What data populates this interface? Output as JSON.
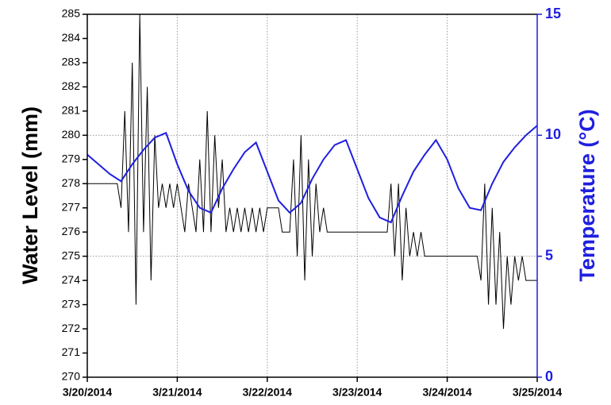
{
  "chart_data": {
    "type": "line",
    "y_label": "Water Level (mm)",
    "y2_label": "Temperature (°C)",
    "xlim": [
      0,
      120
    ],
    "xticks": [
      {
        "value": 0,
        "label": "3/20/2014"
      },
      {
        "value": 24,
        "label": "3/21/2014"
      },
      {
        "value": 48,
        "label": "3/22/2014"
      },
      {
        "value": 72,
        "label": "3/23/2014"
      },
      {
        "value": 96,
        "label": "3/24/2014"
      },
      {
        "value": 120,
        "label": "3/25/2014"
      }
    ],
    "ylim": [
      270,
      285
    ],
    "yticks": [
      270,
      271,
      272,
      273,
      274,
      275,
      276,
      277,
      278,
      279,
      280,
      281,
      282,
      283,
      284,
      285
    ],
    "y2lim": [
      0,
      15
    ],
    "y2ticks": [
      0,
      5,
      10,
      15
    ],
    "grid": true,
    "series": [
      {
        "name": "Water Level",
        "color": "#000000",
        "x": [
          0,
          1,
          2,
          3,
          4,
          5,
          6,
          7,
          8,
          9,
          10,
          11,
          12,
          13,
          14,
          15,
          16,
          17,
          18,
          19,
          20,
          21,
          22,
          23,
          24,
          25,
          26,
          27,
          28,
          29,
          30,
          31,
          32,
          33,
          34,
          35,
          36,
          37,
          38,
          39,
          40,
          41,
          42,
          43,
          44,
          45,
          46,
          47,
          48,
          49,
          50,
          51,
          52,
          53,
          54,
          55,
          56,
          57,
          58,
          59,
          60,
          61,
          62,
          63,
          64,
          65,
          66,
          67,
          68,
          69,
          70,
          71,
          72,
          73,
          74,
          75,
          76,
          77,
          78,
          79,
          80,
          81,
          82,
          83,
          84,
          85,
          86,
          87,
          88,
          89,
          90,
          91,
          92,
          93,
          94,
          95,
          96,
          97,
          98,
          99,
          100,
          101,
          102,
          103,
          104,
          105,
          106,
          107,
          108,
          109,
          110,
          111,
          112,
          113,
          114,
          115,
          116,
          117,
          118,
          119,
          120
        ],
        "values": [
          278,
          278,
          278,
          278,
          278,
          278,
          278,
          278,
          278,
          277,
          281,
          276,
          283,
          273,
          285,
          276,
          282,
          274,
          280,
          277,
          278,
          277,
          278,
          277,
          278,
          277,
          276,
          278,
          277,
          276,
          279,
          276,
          281,
          276,
          280,
          277,
          279,
          276,
          277,
          276,
          277,
          276,
          277,
          276,
          277,
          276,
          277,
          276,
          277,
          277,
          277,
          277,
          276,
          276,
          276,
          279,
          275,
          280,
          274,
          279,
          275,
          278,
          276,
          277,
          276,
          276,
          276,
          276,
          276,
          276,
          276,
          276,
          276,
          276,
          276,
          276,
          276,
          276,
          276,
          276,
          276,
          278,
          275,
          278,
          274,
          277,
          275,
          276,
          275,
          276,
          275,
          275,
          275,
          275,
          275,
          275,
          275,
          275,
          275,
          275,
          275,
          275,
          275,
          275,
          275,
          274,
          278,
          273,
          277,
          273,
          276,
          272,
          275,
          273,
          275,
          274,
          275,
          274,
          274,
          274,
          274
        ]
      },
      {
        "name": "Temperature",
        "color": "#1f1fe0",
        "axis": "y2",
        "x": [
          0,
          3,
          6,
          9,
          12,
          15,
          18,
          21,
          24,
          27,
          30,
          33,
          36,
          39,
          42,
          45,
          48,
          51,
          54,
          57,
          60,
          63,
          66,
          69,
          72,
          75,
          78,
          81,
          84,
          87,
          90,
          93,
          96,
          99,
          102,
          105,
          108,
          111,
          114,
          117,
          120
        ],
        "values": [
          9.2,
          8.8,
          8.4,
          8.1,
          8.8,
          9.4,
          9.9,
          10.1,
          8.8,
          7.7,
          7.0,
          6.8,
          7.8,
          8.6,
          9.3,
          9.7,
          8.5,
          7.3,
          6.8,
          7.2,
          8.2,
          9.0,
          9.6,
          9.8,
          8.6,
          7.4,
          6.6,
          6.4,
          7.5,
          8.5,
          9.2,
          9.8,
          9.0,
          7.8,
          7.0,
          6.9,
          8.0,
          8.9,
          9.5,
          10.0,
          10.4
        ]
      }
    ]
  }
}
